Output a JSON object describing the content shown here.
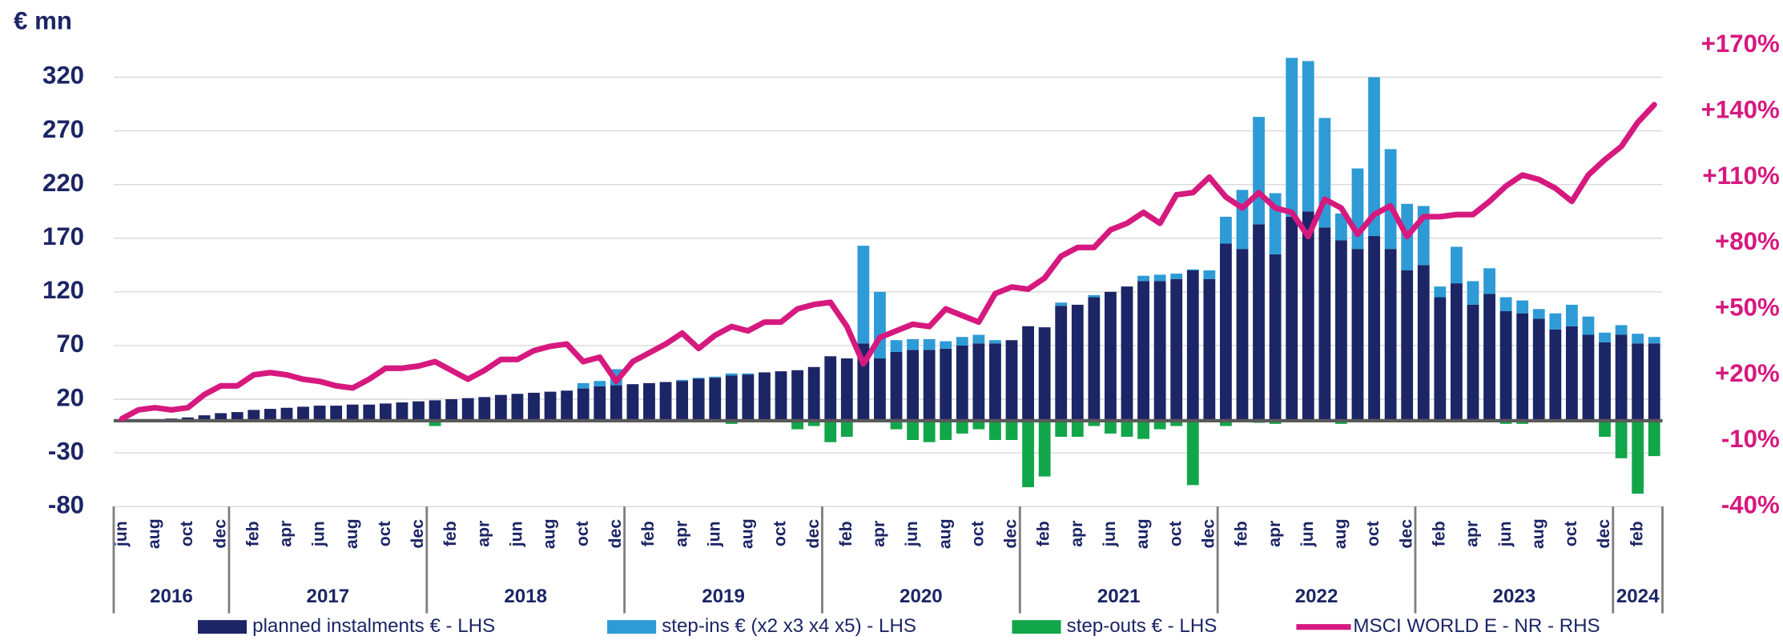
{
  "chart_data": {
    "type": "bar",
    "y_label": "€ mn",
    "categories": [
      "jun",
      null,
      "aug",
      null,
      "oct",
      null,
      "dec",
      null,
      "feb",
      null,
      "apr",
      null,
      "jun",
      null,
      "aug",
      null,
      "oct",
      null,
      "dec",
      null,
      "feb",
      null,
      "apr",
      null,
      "jun",
      null,
      "aug",
      null,
      "oct",
      null,
      "dec",
      null,
      "feb",
      null,
      "apr",
      null,
      "jun",
      null,
      "aug",
      null,
      "oct",
      null,
      "dec",
      null,
      "feb",
      null,
      "apr",
      null,
      "jun",
      null,
      "aug",
      null,
      "oct",
      null,
      "dec",
      null,
      "feb",
      null,
      "apr",
      null,
      "jun",
      null,
      "aug",
      null,
      "oct",
      null,
      "dec",
      null,
      "feb",
      null,
      "apr",
      null,
      "jun",
      null,
      "aug",
      null,
      "oct",
      null,
      "dec",
      null,
      "feb",
      null,
      "apr",
      null,
      "jun",
      null,
      "aug",
      null,
      "oct",
      null,
      "dec",
      null,
      "feb",
      null
    ],
    "x_groups": [
      {
        "label": "2016",
        "count": 7
      },
      {
        "label": "2017",
        "count": 12
      },
      {
        "label": "2018",
        "count": 12
      },
      {
        "label": "2019",
        "count": 12
      },
      {
        "label": "2020",
        "count": 12
      },
      {
        "label": "2021",
        "count": 12
      },
      {
        "label": "2022",
        "count": 12
      },
      {
        "label": "2023",
        "count": 12
      },
      {
        "label": "2024",
        "count": 3
      }
    ],
    "series": [
      {
        "name": "planned instalments € - LHS",
        "type": "bar",
        "color": "#1c2565",
        "values": [
          0,
          1,
          1,
          2,
          3,
          5,
          7,
          8,
          10,
          11,
          12,
          13,
          14,
          14,
          15,
          15,
          16,
          17,
          18,
          19,
          20,
          21,
          22,
          24,
          25,
          26,
          27,
          28,
          30,
          32,
          33,
          34,
          35,
          36,
          37,
          39,
          40,
          42,
          43,
          45,
          46,
          47,
          50,
          60,
          58,
          72,
          58,
          64,
          66,
          66,
          67,
          70,
          72,
          72,
          75,
          88,
          87,
          107,
          108,
          115,
          120,
          125,
          130,
          130,
          132,
          140,
          132,
          165,
          160,
          183,
          155,
          190,
          195,
          180,
          168,
          160,
          172,
          160,
          140,
          145,
          115,
          128,
          108,
          118,
          102,
          100,
          95,
          85,
          88,
          80,
          73,
          80,
          72,
          72
        ]
      },
      {
        "name": "step-ins € (x2 x3 x4 x5) - LHS",
        "type": "bar",
        "color": "#2e9bd6",
        "values": [
          0,
          0,
          0,
          0,
          0,
          0,
          0,
          0,
          0,
          0,
          0,
          0,
          0,
          0,
          0,
          0,
          0,
          0,
          0,
          0,
          0,
          0,
          0,
          0,
          0,
          0,
          0,
          0,
          5,
          5,
          15,
          0,
          0,
          0,
          1,
          1,
          1,
          2,
          1,
          0,
          0,
          0,
          0,
          0,
          0,
          91,
          62,
          11,
          10,
          10,
          7,
          8,
          8,
          3,
          0,
          0,
          0,
          3,
          0,
          2,
          0,
          0,
          5,
          6,
          5,
          1,
          8,
          25,
          55,
          100,
          57,
          148,
          140,
          102,
          25,
          75,
          148,
          93,
          62,
          55,
          10,
          34,
          22,
          24,
          13,
          12,
          9,
          15,
          20,
          17,
          9,
          9,
          9,
          6
        ]
      },
      {
        "name": "step-outs € - LHS",
        "type": "bar",
        "color": "#12a64a",
        "values": [
          0,
          0,
          0,
          0,
          0,
          0,
          0,
          0,
          0,
          0,
          0,
          0,
          0,
          0,
          0,
          0,
          0,
          0,
          0,
          -5,
          0,
          0,
          0,
          0,
          0,
          0,
          0,
          0,
          0,
          0,
          0,
          0,
          0,
          0,
          0,
          0,
          0,
          -3,
          0,
          0,
          0,
          -8,
          -5,
          -20,
          -15,
          0,
          0,
          -8,
          -18,
          -20,
          -18,
          -12,
          -8,
          -18,
          -18,
          -62,
          -52,
          -15,
          -15,
          -5,
          -12,
          -15,
          -17,
          -8,
          -5,
          -60,
          0,
          -5,
          0,
          -2,
          -3,
          0,
          0,
          0,
          -3,
          0,
          0,
          0,
          0,
          0,
          0,
          0,
          0,
          0,
          -3,
          -3,
          0,
          0,
          0,
          0,
          -15,
          -35,
          -68,
          -33
        ]
      },
      {
        "name": "MSCI WORLD E - NR - RHS",
        "type": "line",
        "axis": "y2",
        "color": "#d6197f",
        "values": [
          0,
          4,
          5,
          4,
          5,
          11,
          15,
          15,
          20,
          21,
          20,
          18,
          17,
          15,
          14,
          18,
          23,
          23,
          24,
          26,
          22,
          18,
          22,
          27,
          27,
          31,
          33,
          34,
          26,
          28,
          17,
          26,
          30,
          34,
          39,
          32,
          38,
          42,
          40,
          44,
          44,
          50,
          52,
          53,
          42,
          25,
          37,
          40,
          43,
          42,
          50,
          47,
          44,
          57,
          60,
          59,
          64,
          74,
          78,
          78,
          86,
          89,
          94,
          89,
          102,
          103,
          110,
          101,
          96,
          103,
          96,
          94,
          83,
          100,
          96,
          84,
          93,
          97,
          83,
          92,
          92,
          93,
          93,
          99,
          106,
          111,
          109,
          105,
          99,
          111,
          118,
          124,
          135,
          143
        ]
      }
    ],
    "ylim": [
      -80,
      370
    ],
    "yticks": [
      -80,
      -30,
      20,
      70,
      120,
      170,
      220,
      270,
      320
    ],
    "y2lim": [
      -40,
      180
    ],
    "y2ticks": [
      {
        "value": -40,
        "label": "-40%"
      },
      {
        "value": -10,
        "label": "-10%"
      },
      {
        "value": 20,
        "label": "+20%"
      },
      {
        "value": 50,
        "label": "+50%"
      },
      {
        "value": 80,
        "label": "+80%"
      },
      {
        "value": 110,
        "label": "+110%"
      },
      {
        "value": 140,
        "label": "+140%"
      },
      {
        "value": 170,
        "label": "+170%"
      }
    ],
    "grid": true,
    "legend": "bottom"
  }
}
